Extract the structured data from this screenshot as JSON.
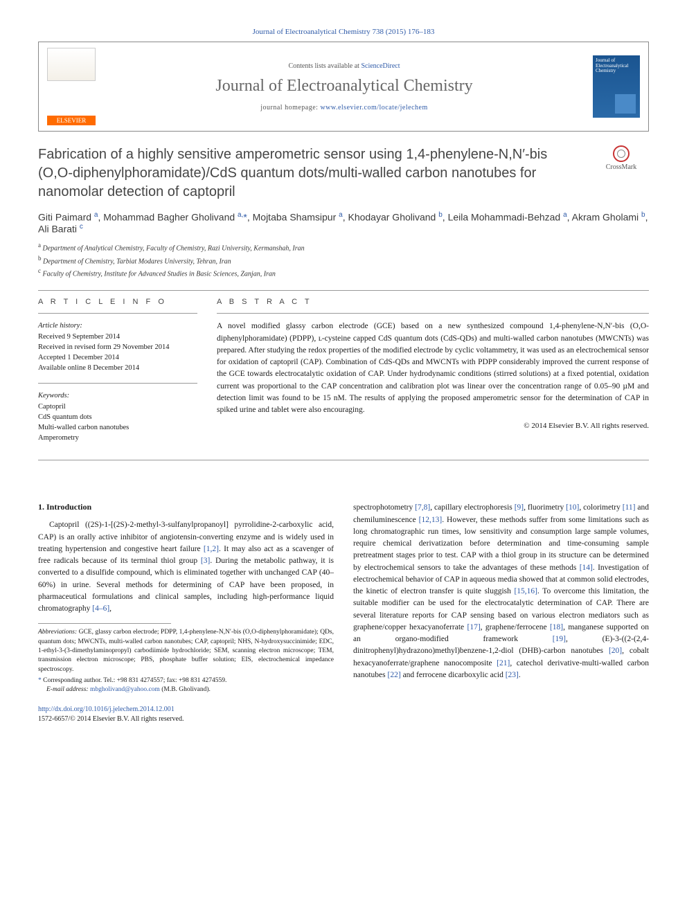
{
  "header": {
    "citation": "Journal of Electroanalytical Chemistry 738 (2015) 176–183",
    "contents_prefix": "Contents lists available at ",
    "contents_link": "ScienceDirect",
    "journal_name": "Journal of Electroanalytical Chemistry",
    "homepage_prefix": "journal homepage: ",
    "homepage_url": "www.elsevier.com/locate/jelechem",
    "elsevier_label": "ELSEVIER",
    "cover_title": "Journal of Electroanalytical Chemistry"
  },
  "crossmark": {
    "label": "CrossMark"
  },
  "title": "Fabrication of a highly sensitive amperometric sensor using 1,4-phenylene-N,N′-bis (O,O-diphenylphoramidate)/CdS quantum dots/multi-walled carbon nanotubes for nanomolar detection of captopril",
  "authors_html": "Giti Paimard <sup>a</sup>, Mohammad Bagher Gholivand <sup>a,</sup><span class='ast'>*</span>, Mojtaba Shamsipur <sup>a</sup>, Khodayar Gholivand <sup>b</sup>, Leila Mohammadi-Behzad <sup>a</sup>, Akram Gholami <sup>b</sup>, Ali Barati <sup>c</sup>",
  "affiliations": {
    "a": "Department of Analytical Chemistry, Faculty of Chemistry, Razi University, Kermanshah, Iran",
    "b": "Department of Chemistry, Tarbiat Modares University, Tehran, Iran",
    "c": "Faculty of Chemistry, Institute for Advanced Studies in Basic Sciences, Zanjan, Iran"
  },
  "article_info": {
    "label": "A R T I C L E   I N F O",
    "history_head": "Article history:",
    "received": "Received 9 September 2014",
    "revised": "Received in revised form 29 November 2014",
    "accepted": "Accepted 1 December 2014",
    "online": "Available online 8 December 2014",
    "keywords_head": "Keywords:",
    "keywords": [
      "Captopril",
      "CdS quantum dots",
      "Multi-walled carbon nanotubes",
      "Amperometry"
    ]
  },
  "abstract": {
    "label": "A B S T R A C T",
    "text": "A novel modified glassy carbon electrode (GCE) based on a new synthesized compound 1,4-phenylene-N,N′-bis (O,O-diphenylphoramidate) (PDPP), ʟ-cysteine capped CdS quantum dots (CdS-QDs) and multi-walled carbon nanotubes (MWCNTs) was prepared. After studying the redox properties of the modified electrode by cyclic voltammetry, it was used as an electrochemical sensor for oxidation of captopril (CAP). Combination of CdS-QDs and MWCNTs with PDPP considerably improved the current response of the GCE towards electrocatalytic oxidation of CAP. Under hydrodynamic conditions (stirred solutions) at a fixed potential, oxidation current was proportional to the CAP concentration and calibration plot was linear over the concentration range of 0.05–90 µM and detection limit was found to be 15 nM. The results of applying the proposed amperometric sensor for the determination of CAP in spiked urine and tablet were also encouraging.",
    "copyright": "© 2014 Elsevier B.V. All rights reserved."
  },
  "intro": {
    "heading": "1. Introduction",
    "col1": "Captopril ((2S)-1-[(2S)-2-methyl-3-sulfanylpropanoyl] pyrrolidine-2-carboxylic acid, CAP) is an orally active inhibitor of angiotensin-converting enzyme and is widely used in treating hypertension and congestive heart failure <span class='cite'>[1,2]</span>. It may also act as a scavenger of free radicals because of its terminal thiol group <span class='cite'>[3]</span>. During the metabolic pathway, it is converted to a disulfide compound, which is eliminated together with unchanged CAP (40–60%) in urine. Several methods for determining of CAP have been proposed, in pharmaceutical formulations and clinical samples, including high-performance liquid chromatography <span class='cite'>[4–6]</span>,",
    "col2": "spectrophotometry <span class='cite'>[7,8]</span>, capillary electrophoresis <span class='cite'>[9]</span>, fluorimetry <span class='cite'>[10]</span>, colorimetry <span class='cite'>[11]</span> and chemiluminescence <span class='cite'>[12,13]</span>. However, these methods suffer from some limitations such as long chromatographic run times, low sensitivity and consumption large sample volumes, require chemical derivatization before determination and time-consuming sample pretreatment stages prior to test. CAP with a thiol group in its structure can be determined by electrochemical sensors to take the advantages of these methods <span class='cite'>[14]</span>. Investigation of electrochemical behavior of CAP in aqueous media showed that at common solid electrodes, the kinetic of electron transfer is quite sluggish <span class='cite'>[15,16]</span>. To overcome this limitation, the suitable modifier can be used for the electrocatalytic determination of CAP. There are several literature reports for CAP sensing based on various electron mediators such as graphene/copper hexacyanoferrate <span class='cite'>[17]</span>, graphene/ferrocene <span class='cite'>[18]</span>, manganese supported on an organo-modified framework <span class='cite'>[19]</span>, (E)-3-((2-(2,4-dinitrophenyl)hydrazono)methyl)benzene-1,2-diol (DHB)-carbon nanotubes <span class='cite'>[20]</span>, cobalt hexacyanoferrate/graphene nanocomposite <span class='cite'>[21]</span>, catechol derivative-multi-walled carbon nanotubes <span class='cite'>[22]</span> and ferrocene dicarboxylic acid <span class='cite'>[23]</span>."
  },
  "footnotes": {
    "abbrev_head": "Abbreviations:",
    "abbrev": " GCE, glassy carbon electrode; PDPP, 1,4-phenylene-N,N′-bis (O,O-diphenylphoramidate); QDs, quantum dots; MWCNTs, multi-walled carbon nanotubes; CAP, captopril; NHS, N-hydroxysuccinimide; EDC, 1-ethyl-3-(3-dimethylaminopropyl) carbodiimide hydrochloride; SEM, scanning electron microscope; TEM, transmission electron microscope; PBS, phosphate buffer solution; EIS, electrochemical impedance spectroscopy.",
    "corr": "Corresponding author. Tel.: +98 831 4274557; fax: +98 831 4274559.",
    "email_head": "E-mail address:",
    "email": "mbgholivand@yahoo.com",
    "email_tail": " (M.B. Gholivand)."
  },
  "doi": {
    "url": "http://dx.doi.org/10.1016/j.jelechem.2014.12.001",
    "issn": "1572-6657/© 2014 Elsevier B.V. All rights reserved."
  }
}
